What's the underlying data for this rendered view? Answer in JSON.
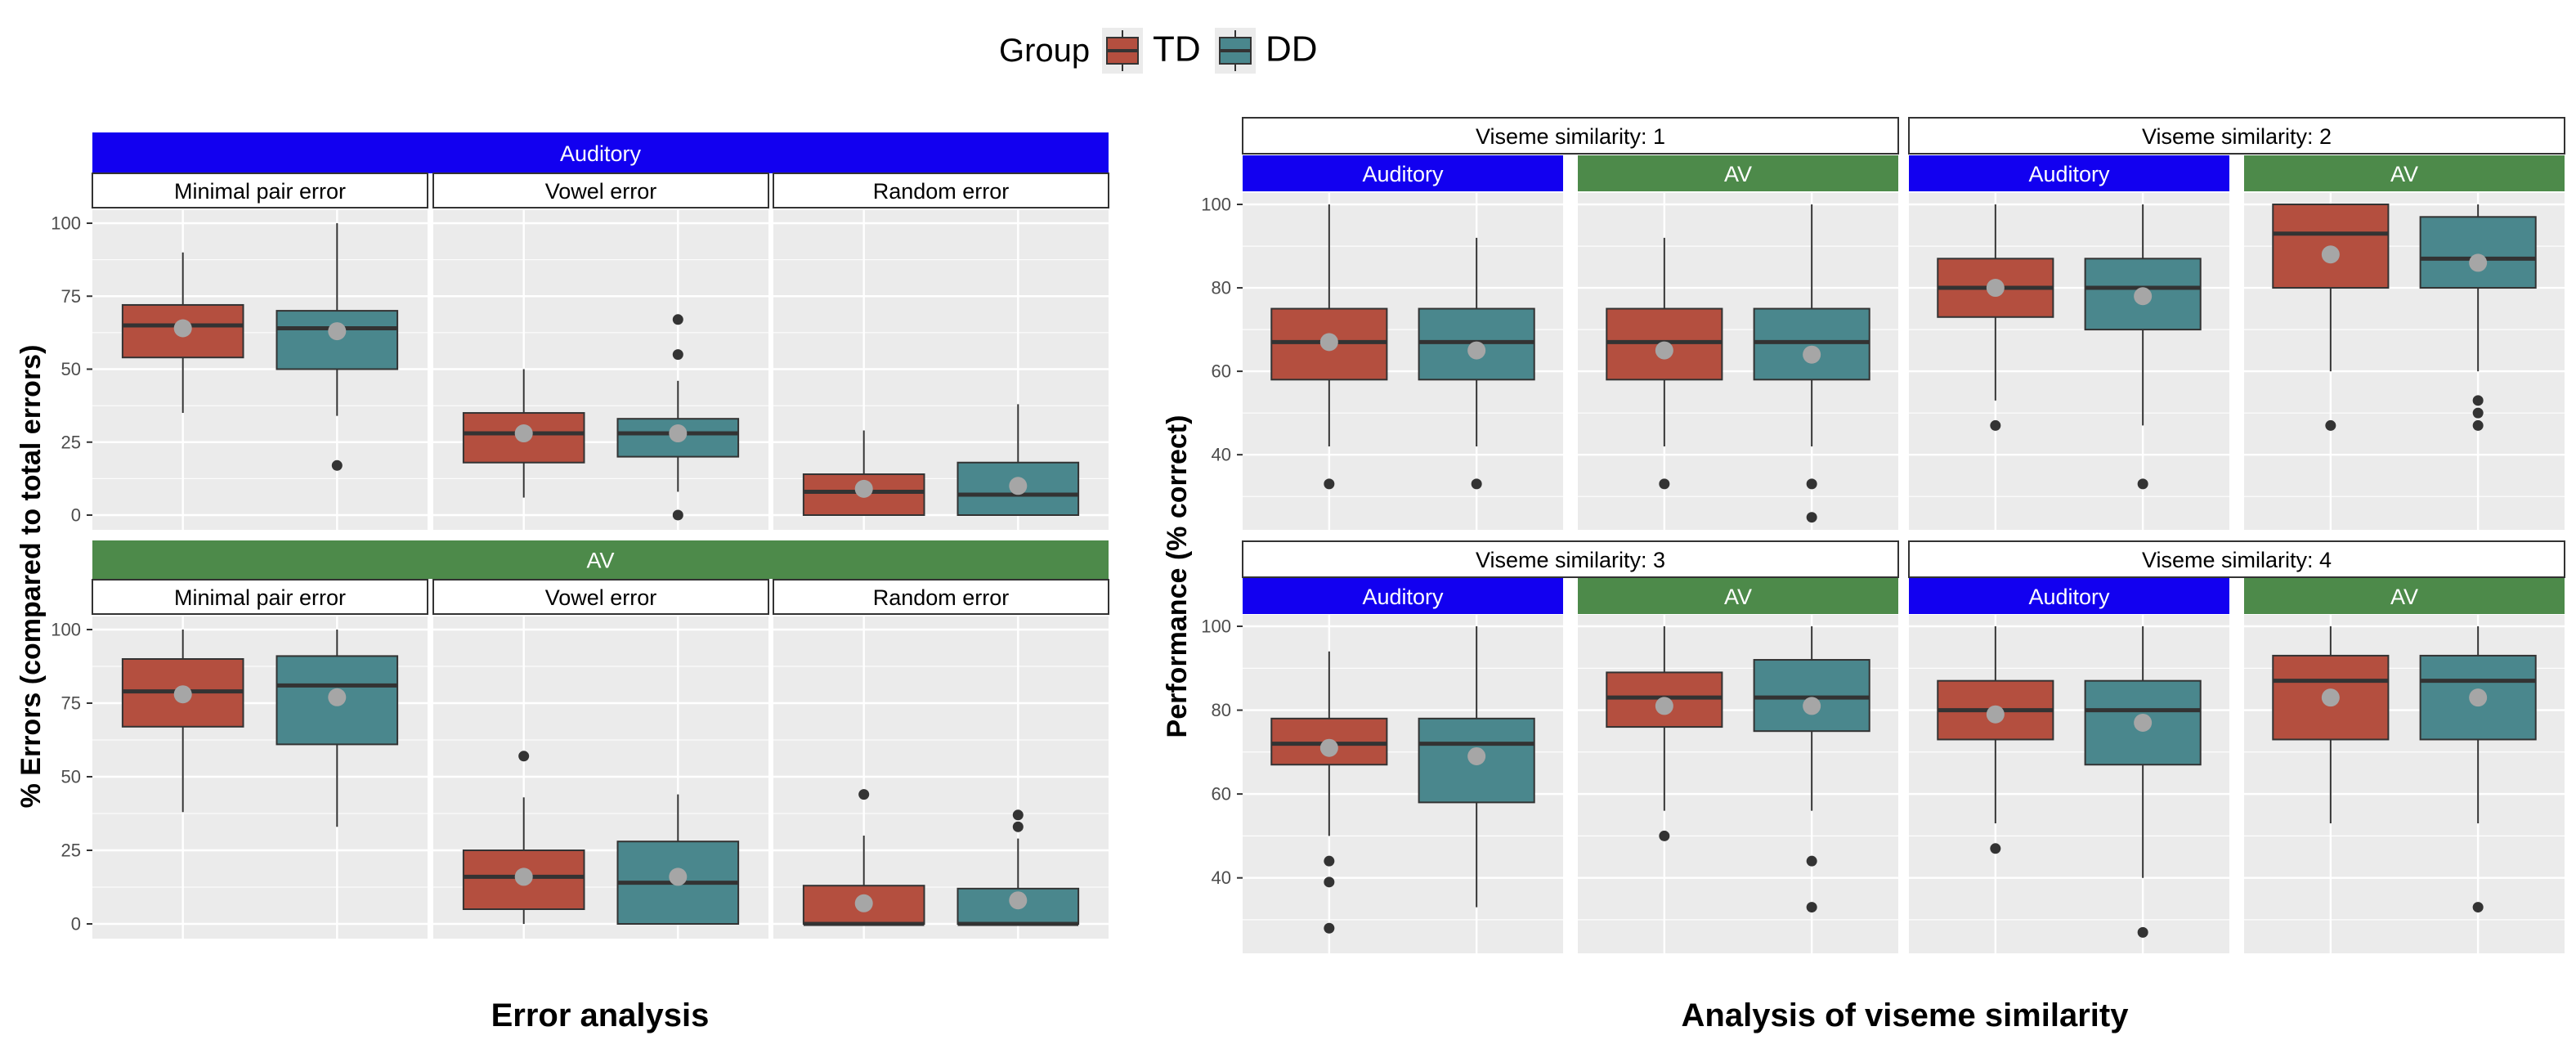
{
  "legend": {
    "title": "Group",
    "position": "top-center",
    "items": [
      {
        "label": "TD",
        "color": "#b44f3f"
      },
      {
        "label": "DD",
        "color": "#4a878d"
      }
    ]
  },
  "colors": {
    "auditory_strip": "#1200f0",
    "av_strip": "#4d8a4a",
    "panel_bg": "#ebebeb",
    "grid": "#ffffff",
    "mean_point": "#a6a6a6",
    "outlier": "#333333",
    "median": "#333333"
  },
  "chart_data": [
    {
      "type": "box",
      "caption": "Error analysis",
      "ylabel": "% Errors (compared to total errors)",
      "ylim": [
        0,
        100
      ],
      "yticks": [
        0,
        25,
        50,
        75,
        100
      ],
      "grid": true,
      "row_strips": [
        "Auditory",
        "AV"
      ],
      "col_strips": [
        "Minimal pair error",
        "Vowel error",
        "Random error"
      ],
      "panels": [
        {
          "row": "Auditory",
          "col": "Minimal pair error",
          "boxes": [
            {
              "group": "TD",
              "lower_whisker": 35,
              "q1": 54,
              "median": 65,
              "q3": 72,
              "upper_whisker": 90,
              "mean": 64,
              "outliers": []
            },
            {
              "group": "DD",
              "lower_whisker": 34,
              "q1": 50,
              "median": 64,
              "q3": 70,
              "upper_whisker": 100,
              "mean": 63,
              "outliers": [
                17
              ]
            }
          ]
        },
        {
          "row": "Auditory",
          "col": "Vowel error",
          "boxes": [
            {
              "group": "TD",
              "lower_whisker": 6,
              "q1": 18,
              "median": 28,
              "q3": 35,
              "upper_whisker": 50,
              "mean": 28,
              "outliers": []
            },
            {
              "group": "DD",
              "lower_whisker": 8,
              "q1": 20,
              "median": 28,
              "q3": 33,
              "upper_whisker": 46,
              "mean": 28,
              "outliers": [
                67,
                55,
                0
              ]
            }
          ]
        },
        {
          "row": "Auditory",
          "col": "Random error",
          "boxes": [
            {
              "group": "TD",
              "lower_whisker": 0,
              "q1": 0,
              "median": 8,
              "q3": 14,
              "upper_whisker": 29,
              "mean": 9,
              "outliers": []
            },
            {
              "group": "DD",
              "lower_whisker": 0,
              "q1": 0,
              "median": 7,
              "q3": 18,
              "upper_whisker": 38,
              "mean": 10,
              "outliers": []
            }
          ]
        },
        {
          "row": "AV",
          "col": "Minimal pair error",
          "boxes": [
            {
              "group": "TD",
              "lower_whisker": 38,
              "q1": 67,
              "median": 79,
              "q3": 90,
              "upper_whisker": 100,
              "mean": 78,
              "outliers": []
            },
            {
              "group": "DD",
              "lower_whisker": 33,
              "q1": 61,
              "median": 81,
              "q3": 91,
              "upper_whisker": 100,
              "mean": 77,
              "outliers": []
            }
          ]
        },
        {
          "row": "AV",
          "col": "Vowel error",
          "boxes": [
            {
              "group": "TD",
              "lower_whisker": 0,
              "q1": 5,
              "median": 16,
              "q3": 25,
              "upper_whisker": 43,
              "mean": 16,
              "outliers": [
                57
              ]
            },
            {
              "group": "DD",
              "lower_whisker": 0,
              "q1": 0,
              "median": 14,
              "q3": 28,
              "upper_whisker": 44,
              "mean": 16,
              "outliers": []
            }
          ]
        },
        {
          "row": "AV",
          "col": "Random error",
          "boxes": [
            {
              "group": "TD",
              "lower_whisker": 0,
              "q1": 0,
              "median": 0,
              "q3": 13,
              "upper_whisker": 30,
              "mean": 7,
              "outliers": [
                44
              ]
            },
            {
              "group": "DD",
              "lower_whisker": 0,
              "q1": 0,
              "median": 0,
              "q3": 12,
              "upper_whisker": 29,
              "mean": 8,
              "outliers": [
                37,
                33
              ]
            }
          ]
        }
      ]
    },
    {
      "type": "box",
      "caption": "Analysis of viseme similarity",
      "ylabel": "Performance (% correct)",
      "ylim": [
        22,
        100
      ],
      "yticks": [
        40,
        60,
        80,
        100
      ],
      "grid": true,
      "group_strips": [
        "Viseme similarity: 1",
        "Viseme similarity: 2",
        "Viseme similarity: 3",
        "Viseme similarity: 4"
      ],
      "sub_strips": [
        "Auditory",
        "AV"
      ],
      "panels": [
        {
          "group_strip": "Viseme similarity: 1",
          "sub": "Auditory",
          "boxes": [
            {
              "group": "TD",
              "lower_whisker": 42,
              "q1": 58,
              "median": 67,
              "q3": 75,
              "upper_whisker": 100,
              "mean": 67,
              "outliers": [
                33
              ]
            },
            {
              "group": "DD",
              "lower_whisker": 42,
              "q1": 58,
              "median": 67,
              "q3": 75,
              "upper_whisker": 92,
              "mean": 65,
              "outliers": [
                33
              ]
            }
          ]
        },
        {
          "group_strip": "Viseme similarity: 1",
          "sub": "AV",
          "boxes": [
            {
              "group": "TD",
              "lower_whisker": 42,
              "q1": 58,
              "median": 67,
              "q3": 75,
              "upper_whisker": 92,
              "mean": 65,
              "outliers": [
                33
              ]
            },
            {
              "group": "DD",
              "lower_whisker": 42,
              "q1": 58,
              "median": 67,
              "q3": 75,
              "upper_whisker": 100,
              "mean": 64,
              "outliers": [
                33,
                25
              ]
            }
          ]
        },
        {
          "group_strip": "Viseme similarity: 2",
          "sub": "Auditory",
          "boxes": [
            {
              "group": "TD",
              "lower_whisker": 53,
              "q1": 73,
              "median": 80,
              "q3": 87,
              "upper_whisker": 100,
              "mean": 80,
              "outliers": [
                47
              ]
            },
            {
              "group": "DD",
              "lower_whisker": 47,
              "q1": 70,
              "median": 80,
              "q3": 87,
              "upper_whisker": 100,
              "mean": 78,
              "outliers": [
                33
              ]
            }
          ]
        },
        {
          "group_strip": "Viseme similarity: 2",
          "sub": "AV",
          "boxes": [
            {
              "group": "TD",
              "lower_whisker": 60,
              "q1": 80,
              "median": 93,
              "q3": 100,
              "upper_whisker": 100,
              "mean": 88,
              "outliers": [
                47
              ]
            },
            {
              "group": "DD",
              "lower_whisker": 60,
              "q1": 80,
              "median": 87,
              "q3": 97,
              "upper_whisker": 100,
              "mean": 86,
              "outliers": [
                53,
                50,
                47
              ]
            }
          ]
        },
        {
          "group_strip": "Viseme similarity: 3",
          "sub": "Auditory",
          "boxes": [
            {
              "group": "TD",
              "lower_whisker": 50,
              "q1": 67,
              "median": 72,
              "q3": 78,
              "upper_whisker": 94,
              "mean": 71,
              "outliers": [
                44,
                39,
                28
              ]
            },
            {
              "group": "DD",
              "lower_whisker": 33,
              "q1": 58,
              "median": 72,
              "q3": 78,
              "upper_whisker": 100,
              "mean": 69,
              "outliers": []
            }
          ]
        },
        {
          "group_strip": "Viseme similarity: 3",
          "sub": "AV",
          "boxes": [
            {
              "group": "TD",
              "lower_whisker": 56,
              "q1": 76,
              "median": 83,
              "q3": 89,
              "upper_whisker": 100,
              "mean": 81,
              "outliers": [
                50
              ]
            },
            {
              "group": "DD",
              "lower_whisker": 56,
              "q1": 75,
              "median": 83,
              "q3": 92,
              "upper_whisker": 100,
              "mean": 81,
              "outliers": [
                44,
                33
              ]
            }
          ]
        },
        {
          "group_strip": "Viseme similarity: 4",
          "sub": "Auditory",
          "boxes": [
            {
              "group": "TD",
              "lower_whisker": 53,
              "q1": 73,
              "median": 80,
              "q3": 87,
              "upper_whisker": 100,
              "mean": 79,
              "outliers": [
                47
              ]
            },
            {
              "group": "DD",
              "lower_whisker": 40,
              "q1": 67,
              "median": 80,
              "q3": 87,
              "upper_whisker": 100,
              "mean": 77,
              "outliers": [
                27
              ]
            }
          ]
        },
        {
          "group_strip": "Viseme similarity: 4",
          "sub": "AV",
          "boxes": [
            {
              "group": "TD",
              "lower_whisker": 53,
              "q1": 73,
              "median": 87,
              "q3": 93,
              "upper_whisker": 100,
              "mean": 83,
              "outliers": []
            },
            {
              "group": "DD",
              "lower_whisker": 53,
              "q1": 73,
              "median": 87,
              "q3": 93,
              "upper_whisker": 100,
              "mean": 83,
              "outliers": [
                33
              ]
            }
          ]
        }
      ]
    }
  ]
}
